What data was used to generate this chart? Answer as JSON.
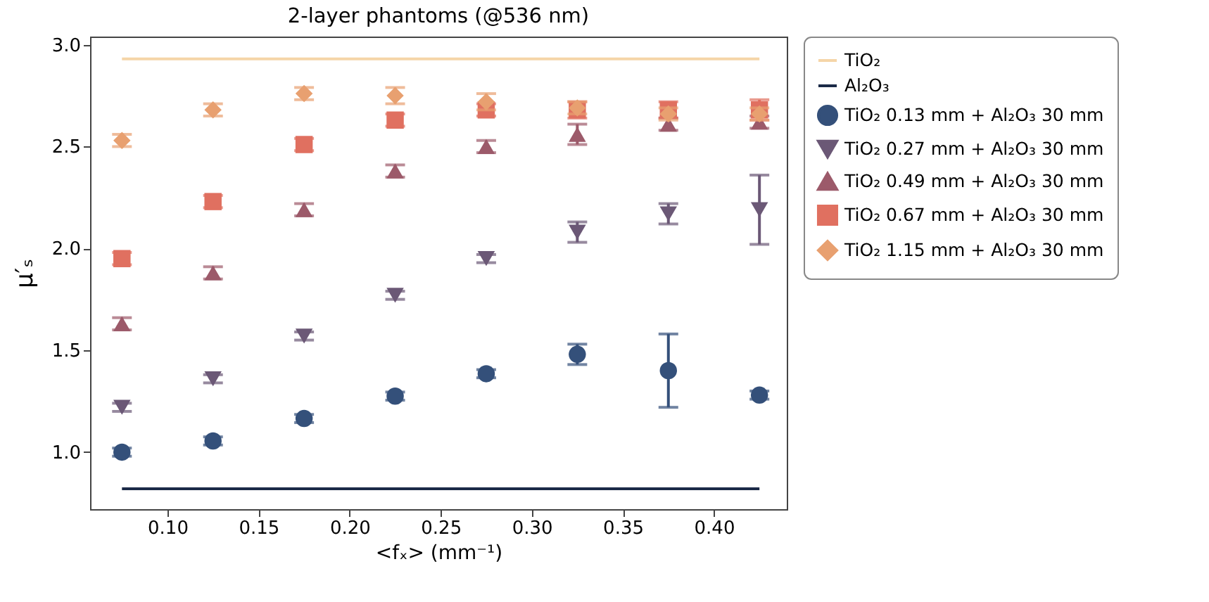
{
  "chart_data": {
    "type": "scatter",
    "title": "2-layer phantoms (@536 nm)",
    "xlabel": "<fₓ> (mm⁻¹)",
    "ylabel": "μ′ₛ",
    "xlim": [
      0.0575,
      0.44
    ],
    "xticks": [
      {
        "value": 0.1,
        "label": "0.10"
      },
      0.15,
      {
        "value": 0.2,
        "label": "0.20"
      },
      0.25,
      {
        "value": 0.3,
        "label": "0.30"
      },
      0.35,
      {
        "value": 0.4,
        "label": "0.40"
      }
    ],
    "ylim": [
      0.72,
      3.04
    ],
    "yticks": [
      {
        "value": 1,
        "label": "1.0"
      },
      1.5,
      {
        "value": 2,
        "label": "2.0"
      },
      2.5,
      {
        "value": 3,
        "label": "3.0"
      }
    ],
    "grid": false,
    "legend": "right",
    "series": [
      {
        "name": "TiO₂",
        "type": "line",
        "color": "#f5d5a8",
        "x": [
          0.075,
          0.425
        ],
        "values": [
          2.93,
          2.93
        ]
      },
      {
        "name": "Al₂O₃",
        "type": "line",
        "color": "#1b2a47",
        "x": [
          0.075,
          0.425
        ],
        "values": [
          0.82,
          0.82
        ]
      },
      {
        "name": "TiO₂ 0.13 mm + Al₂O₃ 30 mm",
        "color": "#34507a",
        "marker": "circle",
        "x": [
          0.075,
          0.125,
          0.175,
          0.225,
          0.275,
          0.325,
          0.375,
          0.425
        ],
        "values": [
          1.0,
          1.055,
          1.165,
          1.275,
          1.385,
          1.48,
          1.4,
          1.28
        ],
        "errors": [
          0.02,
          0.02,
          0.02,
          0.02,
          0.02,
          0.05,
          0.18,
          0.02
        ]
      },
      {
        "name": "TiO₂ 0.27 mm + Al₂O₃ 30 mm",
        "color": "#6b5876",
        "marker": "triangle-down",
        "x": [
          0.075,
          0.125,
          0.175,
          0.225,
          0.275,
          0.325,
          0.375,
          0.425
        ],
        "values": [
          1.22,
          1.36,
          1.57,
          1.77,
          1.95,
          2.08,
          2.17,
          2.19
        ],
        "errors": [
          0.02,
          0.02,
          0.02,
          0.02,
          0.02,
          0.05,
          0.05,
          0.17
        ]
      },
      {
        "name": "TiO₂ 0.49 mm + Al₂O₃ 30 mm",
        "color": "#9c5a6a",
        "marker": "triangle",
        "x": [
          0.075,
          0.125,
          0.175,
          0.225,
          0.275,
          0.325,
          0.375,
          0.425
        ],
        "values": [
          1.63,
          1.88,
          2.19,
          2.38,
          2.5,
          2.56,
          2.61,
          2.62
        ],
        "errors": [
          0.03,
          0.03,
          0.03,
          0.03,
          0.03,
          0.05,
          0.03,
          0.03
        ]
      },
      {
        "name": "TiO₂ 0.67 mm + Al₂O₃ 30 mm",
        "color": "#e07060",
        "marker": "square",
        "x": [
          0.075,
          0.125,
          0.175,
          0.225,
          0.275,
          0.325,
          0.375,
          0.425
        ],
        "values": [
          1.95,
          2.23,
          2.51,
          2.63,
          2.68,
          2.68,
          2.68,
          2.68
        ],
        "errors": [
          0.03,
          0.03,
          0.03,
          0.03,
          0.03,
          0.04,
          0.04,
          0.05
        ]
      },
      {
        "name": "TiO₂ 1.15 mm + Al₂O₃ 30 mm",
        "color": "#e8a070",
        "marker": "diamond",
        "x": [
          0.075,
          0.125,
          0.175,
          0.225,
          0.275,
          0.325,
          0.375,
          0.425
        ],
        "values": [
          2.53,
          2.68,
          2.76,
          2.75,
          2.72,
          2.69,
          2.66,
          2.66
        ],
        "errors": [
          0.03,
          0.03,
          0.03,
          0.04,
          0.04,
          0.03,
          0.03,
          0.03
        ]
      }
    ]
  }
}
